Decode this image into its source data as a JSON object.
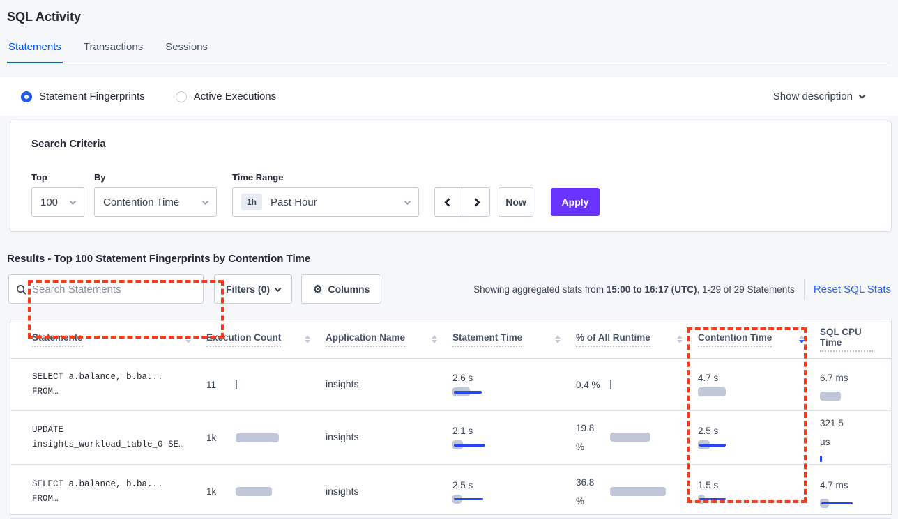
{
  "colors": {
    "accent_blue": "#0055ff",
    "link_blue": "#2962ff",
    "apply_purple": "#6933ff",
    "bar_gray": "#c0c7d8",
    "bar_blue": "#2348f0",
    "annotation_red": "#f93b1d",
    "badge_bg": "#e7ecf3"
  },
  "page": {
    "title": "SQL Activity"
  },
  "tabs": {
    "statements": "Statements",
    "transactions": "Transactions",
    "sessions": "Sessions",
    "active_tab": "Statements"
  },
  "view_toggle": {
    "statement_fingerprints": "Statement Fingerprints",
    "active_executions": "Active Executions",
    "selected": "Statement Fingerprints",
    "show_description": "Show description"
  },
  "search_criteria": {
    "heading": "Search Criteria",
    "top_label": "Top",
    "top_value": "100",
    "by_label": "By",
    "by_value": "Contention Time",
    "time_range_label": "Time Range",
    "time_range_badge": "1h",
    "time_range_value": "Past Hour",
    "now_label": "Now",
    "apply_label": "Apply"
  },
  "results": {
    "heading": "Results - Top 100 Statement Fingerprints by Contention Time",
    "search_placeholder": "Search Statements",
    "filters_label": "Filters (0)",
    "columns_label": "Columns",
    "stats_prefix": "Showing aggregated stats from ",
    "stats_bold": "15:00 to 16:17 (UTC)",
    "stats_suffix": ", 1-29 of 29 Statements",
    "reset_label": "Reset SQL Stats"
  },
  "table": {
    "headers": {
      "statements": "Statements",
      "execution_count": "Execution Count",
      "application_name": "Application Name",
      "statement_time": "Statement Time",
      "pct_runtime": "% of All Runtime",
      "contention_time": "Contention Time",
      "sql_cpu_time": "SQL CPU Time"
    },
    "sorted_column": "Contention Time",
    "sort_direction": "desc",
    "rows": [
      {
        "statement_line1": "SELECT a.balance, b.ba...",
        "statement_line2": "FROM…",
        "execution_count": "11",
        "application_name": "insights",
        "statement_time": "2.6 s",
        "pct_runtime": "0.4 %",
        "contention_time": "4.7 s",
        "sql_cpu_time": "6.7 ms",
        "bars": {
          "stmt_gray": 25,
          "stmt_blue": 40,
          "cont_gray": 40,
          "cpu_gray": 30
        }
      },
      {
        "statement_line1": "UPDATE",
        "statement_line2": "insights_workload_table_0 SE…",
        "execution_count": "1k",
        "application_name": "insights",
        "statement_time": "2.1 s",
        "pct_runtime": "19.8 %",
        "contention_time": "2.5 s",
        "sql_cpu_time": "321.5 µs",
        "bars": {
          "exec_gray": 62,
          "stmt_gray": 15,
          "stmt_blue": 45,
          "pct_gray": 58,
          "cont_gray": 17,
          "cont_blue": 38
        }
      },
      {
        "statement_line1": "SELECT a.balance, b.ba...",
        "statement_line2": "FROM…",
        "execution_count": "1k",
        "application_name": "insights",
        "statement_time": "2.5 s",
        "pct_runtime": "36.8 %",
        "contention_time": "1.5 s",
        "sql_cpu_time": "4.7 ms",
        "bars": {
          "exec_gray": 52,
          "stmt_gray": 13,
          "stmt_blue": 42,
          "pct_gray": 80,
          "cont_gray": 10,
          "cont_blue": 38,
          "cpu_gray": 13,
          "cpu_blue": 45
        }
      }
    ]
  }
}
